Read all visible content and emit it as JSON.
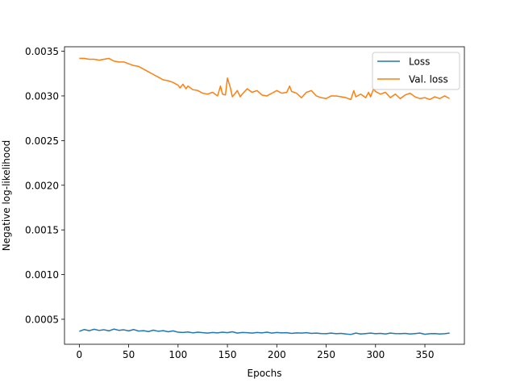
{
  "chart_data": {
    "type": "line",
    "xlabel": "Epochs",
    "ylabel": "Negative log-likelihood",
    "xlim": [
      -15,
      390
    ],
    "ylim": [
      0.00022,
      0.00355
    ],
    "xticks": [
      0,
      50,
      100,
      150,
      200,
      250,
      300,
      350
    ],
    "xtick_labels": [
      "0",
      "50",
      "100",
      "150",
      "200",
      "250",
      "300",
      "350"
    ],
    "yticks": [
      0.0005,
      0.001,
      0.0015,
      0.002,
      0.0025,
      0.003,
      0.0035
    ],
    "ytick_labels": [
      "0.0005",
      "0.0010",
      "0.0015",
      "0.0020",
      "0.0025",
      "0.0030",
      "0.0035"
    ],
    "grid": false,
    "legend_position": "top-right",
    "colors": {
      "loss": "#1f77b4",
      "val_loss": "#ff7f0e"
    },
    "series": [
      {
        "name": "Loss",
        "color": "#1f77b4",
        "x": [
          0,
          5,
          10,
          15,
          20,
          25,
          30,
          35,
          40,
          45,
          50,
          55,
          60,
          65,
          70,
          75,
          80,
          85,
          90,
          95,
          100,
          105,
          110,
          115,
          120,
          125,
          130,
          135,
          140,
          145,
          150,
          155,
          160,
          165,
          170,
          175,
          180,
          185,
          190,
          195,
          200,
          205,
          210,
          215,
          220,
          225,
          230,
          235,
          240,
          245,
          250,
          255,
          260,
          265,
          270,
          275,
          280,
          285,
          290,
          295,
          300,
          305,
          310,
          315,
          320,
          325,
          330,
          335,
          340,
          345,
          350,
          355,
          360,
          365,
          370,
          375
        ],
        "values": [
          0.000365,
          0.000385,
          0.000372,
          0.000388,
          0.000375,
          0.000383,
          0.00037,
          0.00039,
          0.000376,
          0.000382,
          0.00037,
          0.000385,
          0.000368,
          0.000372,
          0.000362,
          0.000378,
          0.000365,
          0.000372,
          0.00036,
          0.00037,
          0.000355,
          0.000352,
          0.000358,
          0.000348,
          0.000355,
          0.00035,
          0.000345,
          0.000352,
          0.000348,
          0.000355,
          0.00035,
          0.00036,
          0.000345,
          0.000352,
          0.00035,
          0.000345,
          0.000352,
          0.000348,
          0.000355,
          0.000345,
          0.000352,
          0.000347,
          0.00035,
          0.000342,
          0.000348,
          0.000345,
          0.00035,
          0.000342,
          0.000345,
          0.00034,
          0.000338,
          0.000345,
          0.000338,
          0.000342,
          0.000335,
          0.00033,
          0.000345,
          0.000335,
          0.00034,
          0.000345,
          0.000338,
          0.000342,
          0.000335,
          0.000345,
          0.00034,
          0.000338,
          0.000342,
          0.000335,
          0.00034,
          0.000345,
          0.000332,
          0.000338,
          0.00034,
          0.000335,
          0.000338,
          0.000345
        ]
      },
      {
        "name": "Val. loss",
        "color": "#ff7f0e",
        "x": [
          0,
          5,
          10,
          15,
          20,
          25,
          30,
          35,
          40,
          45,
          50,
          55,
          60,
          65,
          70,
          75,
          80,
          85,
          90,
          95,
          100,
          102,
          105,
          108,
          110,
          115,
          120,
          125,
          130,
          135,
          140,
          143,
          145,
          148,
          150,
          153,
          155,
          158,
          160,
          163,
          165,
          170,
          175,
          180,
          185,
          190,
          195,
          200,
          205,
          210,
          213,
          215,
          220,
          225,
          230,
          235,
          240,
          245,
          250,
          255,
          260,
          265,
          270,
          275,
          278,
          280,
          285,
          290,
          293,
          295,
          298,
          300,
          305,
          310,
          315,
          320,
          325,
          330,
          335,
          340,
          345,
          350,
          355,
          360,
          365,
          370,
          375
        ],
        "values": [
          0.00342,
          0.00342,
          0.00341,
          0.00341,
          0.0034,
          0.00341,
          0.00342,
          0.00339,
          0.00338,
          0.00338,
          0.00336,
          0.00334,
          0.00333,
          0.0033,
          0.00327,
          0.00324,
          0.00321,
          0.00318,
          0.00317,
          0.00315,
          0.00312,
          0.00309,
          0.00313,
          0.00308,
          0.00311,
          0.00307,
          0.00306,
          0.00303,
          0.00302,
          0.00304,
          0.003,
          0.00311,
          0.00302,
          0.00301,
          0.0032,
          0.00309,
          0.00299,
          0.00303,
          0.00306,
          0.00299,
          0.00302,
          0.00308,
          0.00304,
          0.00306,
          0.00301,
          0.003,
          0.00303,
          0.00306,
          0.00303,
          0.00304,
          0.00311,
          0.00305,
          0.00303,
          0.00298,
          0.00304,
          0.00306,
          0.003,
          0.00298,
          0.00297,
          0.003,
          0.003,
          0.00299,
          0.00298,
          0.00296,
          0.00306,
          0.00299,
          0.00302,
          0.00298,
          0.00304,
          0.00299,
          0.00308,
          0.00305,
          0.00302,
          0.00304,
          0.00298,
          0.00302,
          0.00297,
          0.00301,
          0.00303,
          0.00299,
          0.00297,
          0.00298,
          0.00296,
          0.00299,
          0.00297,
          0.003,
          0.00297
        ]
      }
    ]
  }
}
